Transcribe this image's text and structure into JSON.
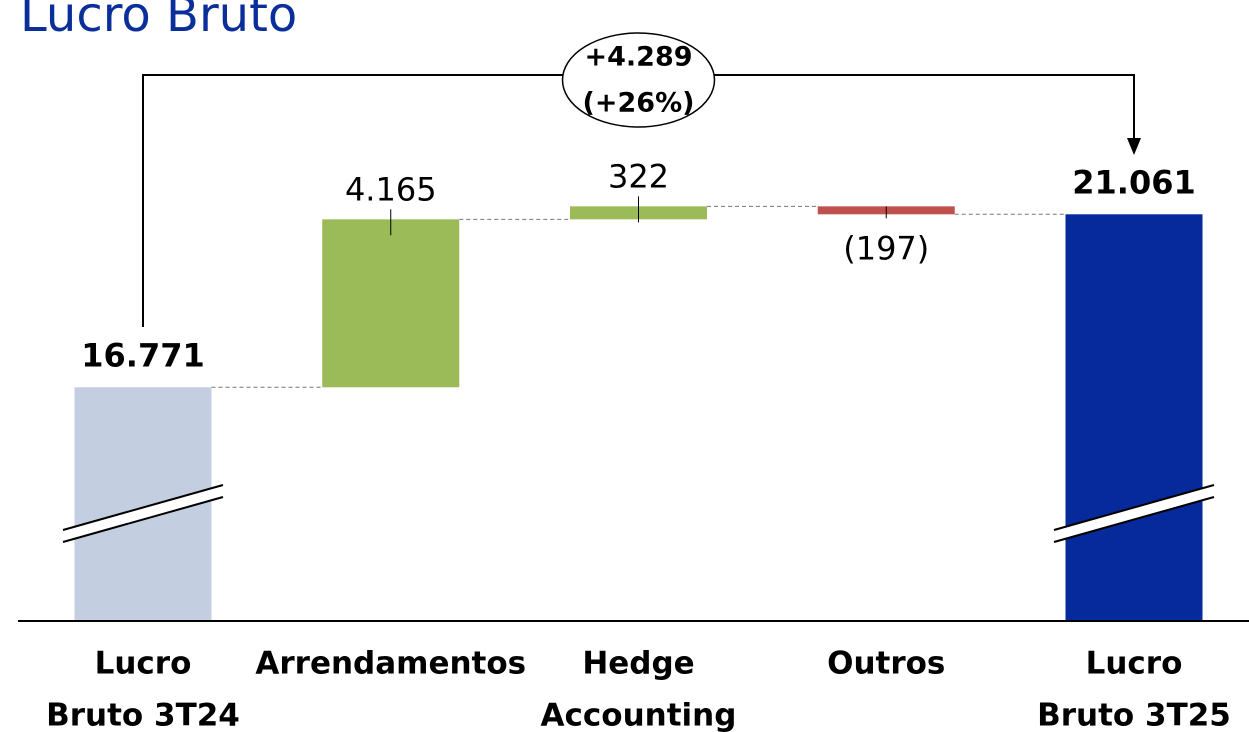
{
  "chart_data": {
    "type": "waterfall",
    "title": "Lucro Bruto",
    "categories": [
      [
        "Lucro",
        "Bruto 3T24"
      ],
      [
        "Arrendamentos"
      ],
      [
        "Hedge",
        "Accounting"
      ],
      [
        "Outros"
      ],
      [
        "Lucro",
        "Bruto 3T25"
      ]
    ],
    "values": [
      16771,
      4165,
      322,
      -197,
      21061
    ],
    "value_labels": [
      "16.771",
      "4.165",
      "322",
      "(197)",
      "21.061"
    ],
    "bar_types": [
      "total",
      "delta",
      "delta",
      "delta",
      "total"
    ],
    "colors": [
      "#c3cfe1",
      "#9bbb59",
      "#9bbb59",
      "#c0504d",
      "#062a9b"
    ],
    "ylim": [
      11000,
      23300
    ],
    "axis_break": true,
    "annotation": {
      "lines": [
        "+4.289",
        "(+26%)"
      ]
    }
  }
}
